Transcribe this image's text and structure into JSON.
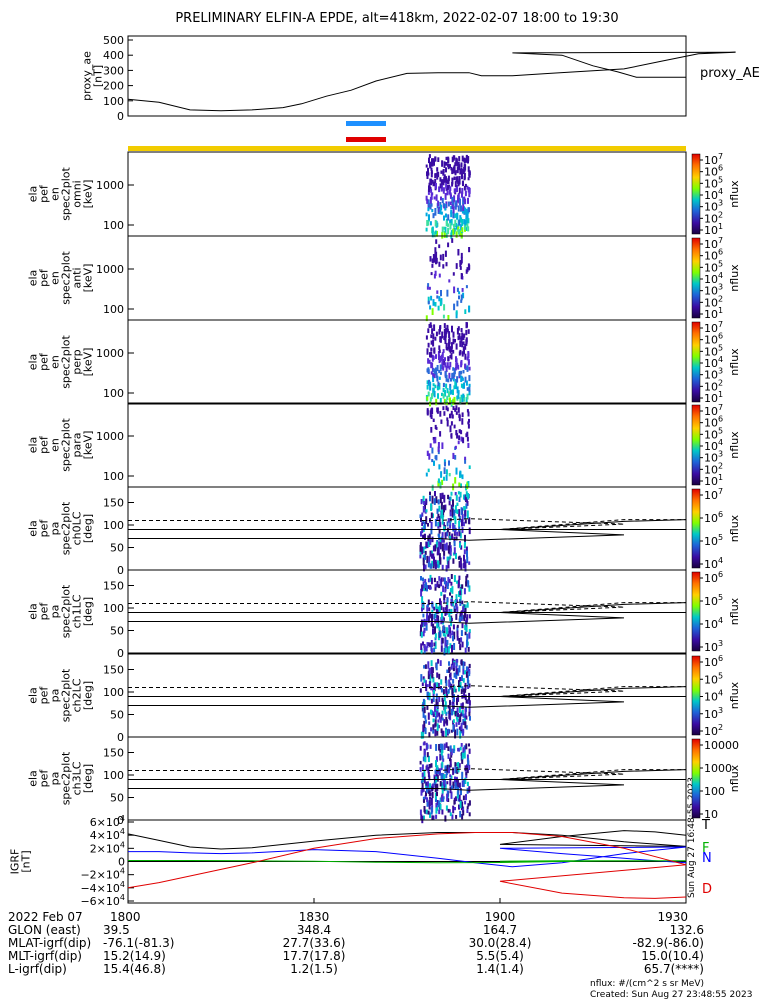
{
  "title": "PRELIMINARY ELFIN-A EPDE, alt=418km, 2022-02-07 18:00 to 19:30",
  "colors": {
    "orbit_bar": "#f2cc00",
    "science_zone_blue": "#1e90ff",
    "science_zone_red": "#e00000",
    "spectra_low": "#3a0ca3",
    "spectra_mid": "#00c8c8",
    "spectra_high": "#7fff00",
    "igrf_black": "#000000",
    "igrf_blue": "#0000ff",
    "igrf_green": "#00b000",
    "igrf_red": "#e00000"
  },
  "chart_data": [
    {
      "type": "line",
      "panel": "proxy_ae",
      "ylabel": "proxy_ae\n[nT]",
      "legend": "proxy_AE",
      "ylim": [
        0,
        500
      ],
      "yticks": [
        "500",
        "400",
        "300",
        "200",
        "100",
        "0"
      ],
      "series": [
        {
          "name": "proxy_AE",
          "x": [
            1800,
            1805,
            1810,
            1815,
            1820,
            1825,
            1828,
            1832,
            1836,
            1840,
            1845,
            1850,
            1855,
            1857,
            1862,
            1868,
            1872,
            1876,
            1880,
            1886,
            1892,
            1898,
            1902,
            1910,
            1915,
            1919,
            1922,
            1925,
            1930
          ],
          "values": [
            110,
            90,
            40,
            35,
            40,
            55,
            80,
            130,
            170,
            230,
            280,
            285,
            285,
            265,
            265,
            280,
            290,
            300,
            310,
            360,
            410,
            420,
            415,
            400,
            330,
            290,
            255,
            255,
            255
          ]
        }
      ]
    },
    {
      "type": "heatmap",
      "panel": "spectrogram",
      "panels": [
        {
          "ylabel": "ela\npef\nen\nspec2plot\nomni\n[keV]",
          "ytick_labels": [
            "1000",
            "100"
          ],
          "colorbar_label": "nflux",
          "colorbar_ticks": [
            "10^7",
            "10^6",
            "10^5",
            "10^4",
            "10^3",
            "10^2",
            "10^1"
          ]
        },
        {
          "ylabel": "ela\npef\nen\nspec2plot\nanti\n[keV]",
          "ytick_labels": [
            "1000",
            "100"
          ],
          "colorbar_label": "nflux",
          "colorbar_ticks": [
            "10^7",
            "10^6",
            "10^5",
            "10^4",
            "10^3",
            "10^2",
            "10^1"
          ]
        },
        {
          "ylabel": "ela\npef\nen\nspec2plot\nperp\n[keV]",
          "ytick_labels": [
            "1000",
            "100"
          ],
          "colorbar_label": "nflux",
          "colorbar_ticks": [
            "10^7",
            "10^6",
            "10^5",
            "10^4",
            "10^3",
            "10^2",
            "10^1"
          ]
        },
        {
          "ylabel": "ela\npef\nen\nspec2plot\npara\n[keV]",
          "ytick_labels": [
            "1000",
            "100"
          ],
          "colorbar_label": "nflux",
          "colorbar_ticks": [
            "10^7",
            "10^6",
            "10^5",
            "10^4",
            "10^3",
            "10^2",
            "10^1"
          ]
        }
      ],
      "time_range": [
        1800,
        1930
      ],
      "active_window": [
        1848,
        1855
      ]
    },
    {
      "type": "heatmap",
      "panel": "pitch_angle",
      "panels": [
        {
          "ylabel": "ela\npef\npa\nspec2plot\nch0LC\n[deg]",
          "yticks": [
            "150",
            "100",
            "50",
            "0"
          ],
          "colorbar_label": "nflux",
          "colorbar_ticks": [
            "10^7",
            "10^6",
            "10^5",
            "10^4"
          ]
        },
        {
          "ylabel": "ela\npef\npa\nspec2plot\nch1LC\n[deg]",
          "yticks": [
            "150",
            "100",
            "50",
            "0"
          ],
          "colorbar_label": "nflux",
          "colorbar_ticks": [
            "10^6",
            "10^5",
            "10^4",
            "10^3"
          ]
        },
        {
          "ylabel": "ela\npef\npa\nspec2plot\nch2LC\n[deg]",
          "yticks": [
            "150",
            "100",
            "50",
            "0"
          ],
          "colorbar_label": "nflux",
          "colorbar_ticks": [
            "10^6",
            "10^5",
            "10^4",
            "10^3",
            "10^2"
          ]
        },
        {
          "ylabel": "ela\npef\npa\nspec2plot\nch3LC\n[deg]",
          "yticks": [
            "150",
            "100",
            "50",
            "0"
          ],
          "colorbar_label": "nflux",
          "colorbar_ticks": [
            "10000",
            "1000",
            "100",
            "10"
          ]
        }
      ],
      "ylim": [
        0,
        180
      ],
      "loss_cone_solid": {
        "x": [
          1800,
          1850,
          1855,
          1880,
          1900,
          1920,
          1930
        ],
        "values": [
          70,
          70,
          66,
          78,
          90,
          108,
          112
        ]
      },
      "loss_cone_dashed": {
        "x": [
          1800,
          1850,
          1855,
          1880,
          1900,
          1920,
          1930
        ],
        "values": [
          110,
          110,
          114,
          102,
          90,
          112,
          112
        ]
      },
      "horizontal_line": 90
    },
    {
      "type": "line",
      "panel": "igrf",
      "ylabel": "IGRF\n[nT]",
      "ylim": [
        -60000,
        60000
      ],
      "yticks": [
        "6×10^4",
        "4×10^4",
        "2×10^4",
        "0",
        "−2×10^4",
        "−4×10^4",
        "−6×10^4"
      ],
      "legend": [
        "T",
        "F",
        "N",
        "D"
      ],
      "series": [
        {
          "name": "T",
          "x": [
            1800,
            1805,
            1810,
            1815,
            1820,
            1830,
            1840,
            1850,
            1856,
            1862,
            1870,
            1880,
            1890,
            1900,
            1910,
            1920,
            1925,
            1930
          ],
          "values": [
            42000,
            32000,
            22000,
            19000,
            21000,
            31000,
            40000,
            44000,
            44000,
            44000,
            40000,
            30000,
            23000,
            26000,
            38000,
            47000,
            45000,
            40000
          ]
        },
        {
          "name": "N",
          "x": [
            1800,
            1805,
            1810,
            1815,
            1820,
            1830,
            1840,
            1850,
            1856,
            1862,
            1870,
            1880,
            1890,
            1900,
            1910,
            1920,
            1925,
            1930
          ],
          "values": [
            15000,
            15000,
            13000,
            12000,
            13000,
            18000,
            15000,
            5000,
            -2000,
            -8000,
            -2000,
            12000,
            22000,
            20000,
            12000,
            5000,
            1000,
            -2000
          ]
        },
        {
          "name": "F",
          "x": [
            1800,
            1810,
            1820,
            1830,
            1840,
            1850,
            1860,
            1870,
            1880,
            1890,
            1900,
            1910,
            1920,
            1930
          ],
          "values": [
            1500,
            1500,
            1000,
            500,
            -1000,
            -2000,
            -1500,
            0,
            1000,
            1000,
            500,
            1000,
            1000,
            1000
          ]
        },
        {
          "name": "D",
          "x": [
            1800,
            1805,
            1810,
            1815,
            1820,
            1830,
            1840,
            1850,
            1856,
            1862,
            1870,
            1880,
            1890,
            1900,
            1910,
            1920,
            1925,
            1930
          ],
          "values": [
            -40000,
            -32000,
            -22000,
            -12000,
            -2000,
            20000,
            35000,
            42000,
            44000,
            44000,
            38000,
            20000,
            -5000,
            -30000,
            -48000,
            -55000,
            -56000,
            -54000
          ]
        }
      ]
    }
  ],
  "time_axis": {
    "date_label": "2022 Feb 07",
    "ticks": [
      "1800",
      "1830",
      "1900",
      "1930"
    ],
    "rows": [
      {
        "label": "GLON (east)",
        "values": [
          "39.5",
          "348.4",
          "164.7",
          "132.6"
        ]
      },
      {
        "label": "MLAT-igrf(dip)",
        "values": [
          "-76.1(-81.3)",
          "27.7(33.6)",
          "30.0(28.4)",
          "-82.9(-86.0)"
        ]
      },
      {
        "label": "MLT-igrf(dip)",
        "values": [
          "15.2(14.9)",
          "17.7(17.8)",
          "5.5(5.4)",
          "15.0(10.4)"
        ]
      },
      {
        "label": "L-igrf(dip)",
        "values": [
          "15.4(46.8)",
          "1.2(1.5)",
          "1.4(1.4)",
          "65.7(****)"
        ]
      }
    ]
  },
  "footer": {
    "units": "nflux: #/(cm^2 s sr MeV)",
    "created": "Created: Sun Aug 27 23:48:55 2023",
    "side_stamp": "Sun Aug 27 16:48:55 2023"
  }
}
